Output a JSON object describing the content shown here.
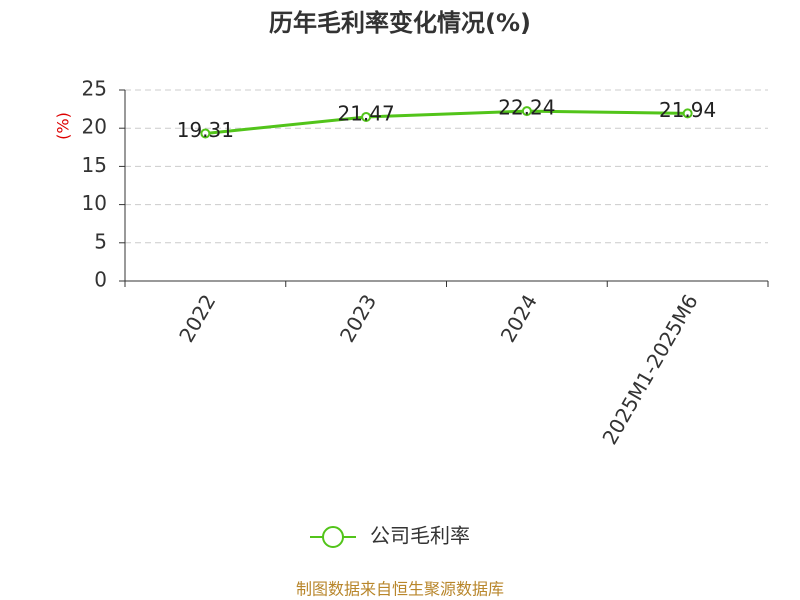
{
  "chart_data": {
    "type": "line",
    "title": "历年毛利率变化情况(%)",
    "y_label": "(%)",
    "categories": [
      "2022",
      "2023",
      "2024",
      "2025M1-2025M6"
    ],
    "series": [
      {
        "name": "公司毛利率",
        "color": "#52c41a",
        "values": [
          19.31,
          21.47,
          22.24,
          21.94
        ]
      }
    ],
    "ylim": [
      0,
      25
    ],
    "yticks": [
      0,
      5,
      10,
      15,
      20,
      25
    ],
    "grid": true,
    "legend": "bottom",
    "source": "制图数据来自恒生聚源数据库"
  }
}
